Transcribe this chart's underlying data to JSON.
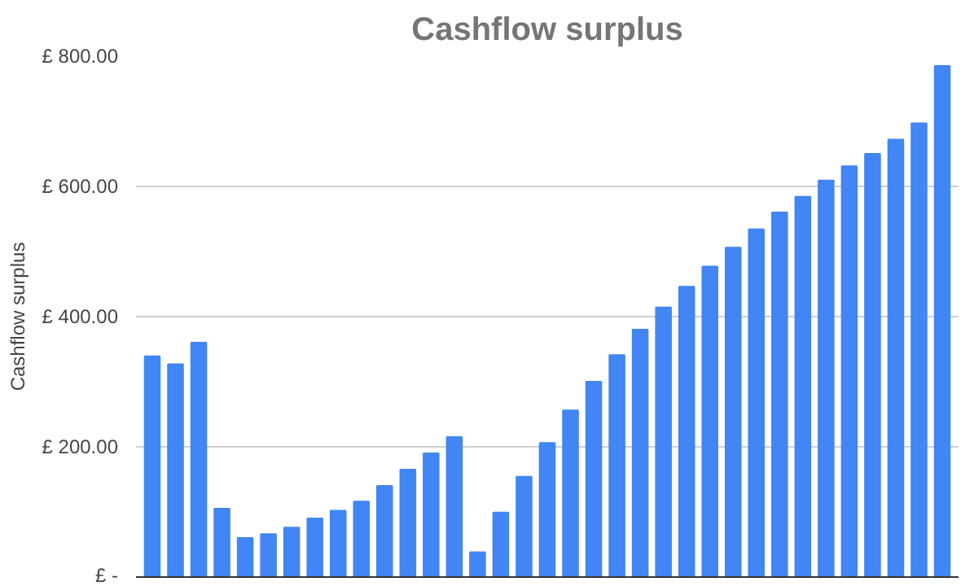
{
  "chart_data": {
    "type": "bar",
    "title": "Cashflow surplus",
    "ylabel": "Cashflow surplus",
    "categories": [
      null,
      null,
      null,
      null,
      null,
      null,
      null,
      null,
      null,
      null,
      null,
      null,
      null,
      null,
      null,
      null,
      null,
      null,
      null,
      null,
      null,
      null,
      null,
      null,
      null,
      null,
      null,
      null,
      null,
      null,
      null,
      null,
      null,
      null,
      null
    ],
    "series": [
      {
        "color": "#4285f4",
        "values": [
          339,
          327,
          360,
          105,
          60,
          66,
          76,
          90,
          102,
          116,
          140,
          165,
          190,
          215,
          38,
          99,
          154,
          206,
          256,
          300,
          341,
          380,
          414,
          446,
          477,
          506,
          534,
          560,
          584,
          609,
          631,
          650,
          672,
          697,
          785
        ]
      }
    ],
    "ylim": [
      0,
      800
    ],
    "yticks": [
      {
        "value": 0,
        "label": "£ -"
      },
      {
        "value": 200,
        "label": "£ 200.00"
      },
      {
        "value": 400,
        "label": "£ 400.00"
      },
      {
        "value": 600,
        "label": "£ 600.00"
      },
      {
        "value": 800,
        "label": "£ 800.00"
      }
    ],
    "grid": "y"
  }
}
